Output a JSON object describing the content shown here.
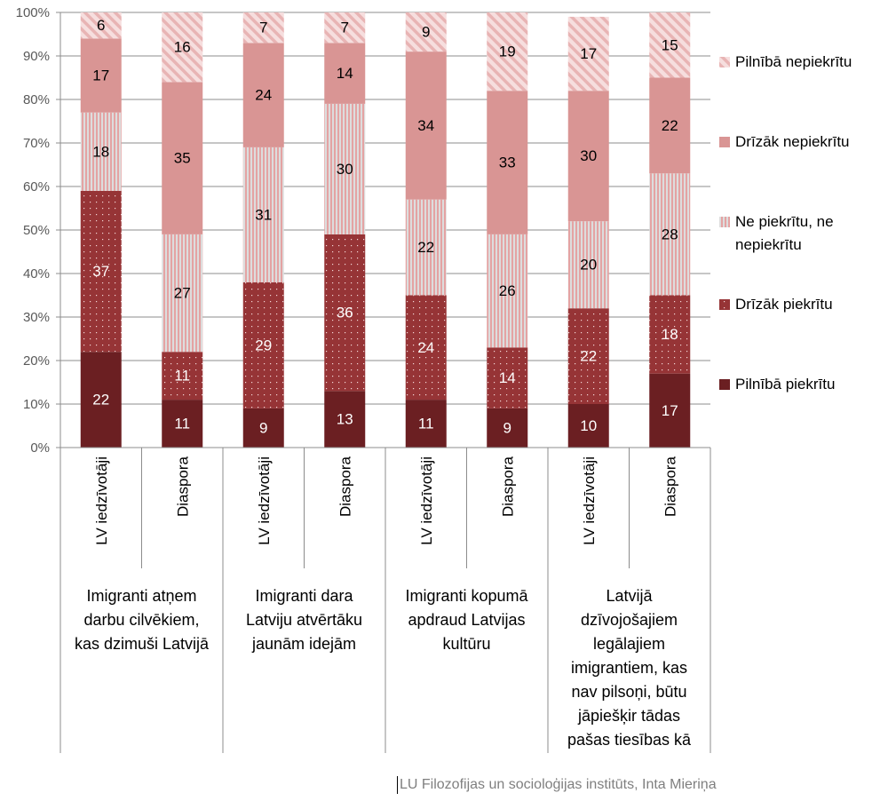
{
  "chart_data": {
    "type": "bar",
    "stacked": true,
    "percent": true,
    "title": "",
    "xlabel": "",
    "ylabel": "",
    "ylim": [
      0,
      100
    ],
    "yticks": [
      "0%",
      "10%",
      "20%",
      "30%",
      "40%",
      "50%",
      "60%",
      "70%",
      "80%",
      "90%",
      "100%"
    ],
    "grid": true,
    "legend_position": "right",
    "groups": [
      {
        "label_lines": [
          "Imigranti atņem",
          "darbu cilvēkiem,",
          "kas dzimuši Latvijā"
        ],
        "categories": [
          "LV iedzīvotāji",
          "Diaspora"
        ]
      },
      {
        "label_lines": [
          "Imigranti dara",
          "Latviju atvērtāku",
          "jaunām idejām"
        ],
        "categories": [
          "LV iedzīvotāji",
          "Diaspora"
        ]
      },
      {
        "label_lines": [
          "Imigranti kopumā",
          "apdraud Latvijas",
          "kultūru"
        ],
        "categories": [
          "LV iedzīvotāji",
          "Diaspora"
        ]
      },
      {
        "label_lines": [
          "Latvijā",
          "dzīvojošajiem",
          "legālajiem",
          "imigrantiem, kas",
          "nav pilsoņi, būtu",
          "jāpiešķir tādas",
          "pašas tiesības kā"
        ],
        "categories": [
          "LV iedzīvotāji",
          "Diaspora"
        ]
      }
    ],
    "categories": [
      "LV iedzīvotāji",
      "Diaspora",
      "LV iedzīvotāji",
      "Diaspora",
      "LV iedzīvotāji",
      "Diaspora",
      "LV iedzīvotāji",
      "Diaspora"
    ],
    "series": [
      {
        "name": "Pilnībā piekrītu",
        "color": "#6b1f22",
        "pattern": "solid",
        "label_color": "#ffffff",
        "values": [
          22,
          11,
          9,
          13,
          11,
          9,
          10,
          17
        ]
      },
      {
        "name": "Drīzāk piekrītu",
        "color": "#963436",
        "pattern": "dots",
        "label_color": "#ffffff",
        "values": [
          37,
          11,
          29,
          36,
          24,
          14,
          22,
          18
        ]
      },
      {
        "name": "Ne piekrītu, ne nepiekrītu",
        "color": "#e4a3a3",
        "pattern": "vertical-stripes",
        "label_color": "#000000",
        "values": [
          18,
          27,
          31,
          30,
          22,
          26,
          20,
          28
        ]
      },
      {
        "name": "Drīzāk nepiekrītu",
        "color": "#d99594",
        "pattern": "solid",
        "label_color": "#000000",
        "values": [
          17,
          35,
          24,
          14,
          34,
          33,
          30,
          22
        ]
      },
      {
        "name": "Pilnībā nepiekrītu",
        "color": "#f2d0d0",
        "pattern": "diagonal-stripes",
        "label_color": "#000000",
        "values": [
          6,
          16,
          7,
          7,
          9,
          19,
          17,
          15
        ]
      }
    ],
    "legend": {
      "items": [
        {
          "series": "Pilnībā nepiekrītu",
          "lines": [
            "Pilnībā nepiekrītu"
          ]
        },
        {
          "series": "Drīzāk nepiekrītu",
          "lines": [
            "Drīzāk nepiekrītu"
          ]
        },
        {
          "series": "Ne piekrītu, ne nepiekrītu",
          "lines": [
            "Ne piekrītu, ne",
            "nepiekrītu"
          ]
        },
        {
          "series": "Drīzāk piekrītu",
          "lines": [
            "Drīzāk piekrītu"
          ]
        },
        {
          "series": "Pilnībā piekrītu",
          "lines": [
            "Pilnībā piekrītu"
          ]
        }
      ]
    }
  },
  "footer": {
    "source": "LU Filozofijas un socioloģijas institūts, Inta Mieriņa"
  }
}
